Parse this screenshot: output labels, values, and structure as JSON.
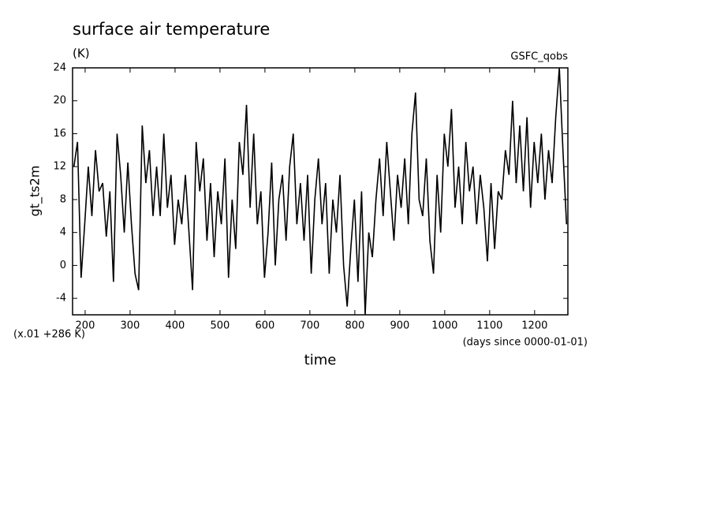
{
  "chart_data": {
    "type": "line",
    "title": "surface air temperature",
    "subtitle": "(K)",
    "annotation": "GSFC_qobs",
    "ylabel": "gt_ts2m",
    "xlabel": "time",
    "x_note": "(x.01 +286 K)",
    "x_units": "(days since 0000-01-01)",
    "x": [
      175,
      183,
      191,
      199,
      207,
      215,
      223,
      231,
      239,
      247,
      255,
      263,
      271,
      279,
      287,
      295,
      303,
      311,
      319,
      327,
      335,
      343,
      351,
      359,
      367,
      375,
      383,
      391,
      399,
      407,
      415,
      423,
      431,
      439,
      447,
      455,
      463,
      471,
      479,
      487,
      495,
      503,
      511,
      519,
      527,
      535,
      543,
      551,
      559,
      567,
      575,
      583,
      591,
      599,
      607,
      615,
      623,
      631,
      639,
      647,
      655,
      663,
      671,
      679,
      687,
      695,
      703,
      711,
      719,
      727,
      735,
      743,
      751,
      759,
      767,
      775,
      783,
      791,
      799,
      807,
      815,
      823,
      831,
      839,
      847,
      855,
      863,
      871,
      879,
      887,
      895,
      903,
      911,
      919,
      927,
      935,
      943,
      951,
      959,
      967,
      975,
      983,
      991,
      999,
      1007,
      1015,
      1023,
      1031,
      1039,
      1047,
      1055,
      1063,
      1071,
      1079,
      1087,
      1095,
      1103,
      1111,
      1119,
      1127,
      1135,
      1143,
      1151,
      1159,
      1167,
      1175,
      1183,
      1191,
      1199,
      1207,
      1215,
      1223,
      1231,
      1239,
      1247,
      1255,
      1263,
      1271
    ],
    "series": [
      {
        "color": "#000000",
        "values": [
          12,
          15,
          -1.5,
          5,
          12,
          6,
          14,
          9,
          10,
          3.5,
          9,
          -2,
          16,
          11,
          4,
          12.5,
          5,
          -1,
          -3,
          17,
          10,
          14,
          6,
          12,
          6,
          16,
          7,
          11,
          2.5,
          8,
          5,
          11,
          4,
          -3,
          15,
          9,
          13,
          3,
          10,
          1,
          9,
          5,
          13,
          -1.5,
          8,
          2,
          15,
          11,
          19.5,
          7,
          16,
          5,
          9,
          -1.5,
          4,
          12.5,
          0,
          8,
          11,
          3,
          12,
          16,
          5,
          10,
          3,
          11,
          -1,
          8,
          13,
          5,
          10,
          -1,
          8,
          4,
          11,
          0,
          -5,
          2,
          8,
          -2,
          9,
          -6,
          4,
          1,
          8,
          13,
          6,
          15,
          9,
          3,
          11,
          7,
          13,
          5,
          16,
          21,
          8,
          6,
          13,
          3,
          -1,
          11,
          4,
          16,
          12,
          19,
          7,
          12,
          5,
          15,
          9,
          12,
          5,
          11,
          7,
          0.5,
          10,
          2,
          9,
          8,
          14,
          11,
          20,
          10,
          17,
          9,
          18,
          7,
          15,
          10,
          16,
          8,
          14,
          10,
          18,
          24,
          14,
          5
        ]
      }
    ],
    "xlim": [
      172,
      1274
    ],
    "ylim": [
      -6,
      24
    ],
    "xticks": [
      200,
      300,
      400,
      500,
      600,
      700,
      800,
      900,
      1000,
      1100,
      1200
    ],
    "yticks": [
      -4,
      0,
      4,
      8,
      12,
      16,
      20,
      24
    ]
  }
}
